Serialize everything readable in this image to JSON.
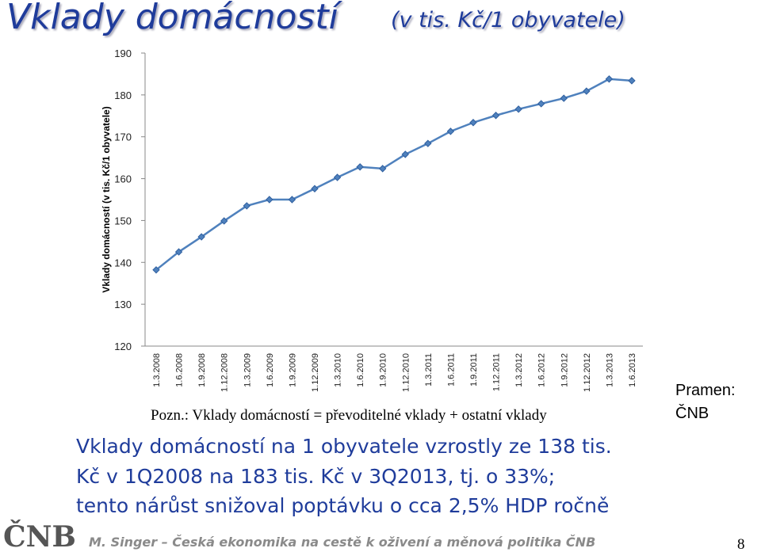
{
  "slide": {
    "title": "Vklady domácností",
    "subtitle": "(v tis. Kč/1 obyvatele)",
    "note": "Pozn.: Vklady domácností = převoditelné vklady + ostatní vklady",
    "source": [
      "Pramen:",
      "ČNB"
    ],
    "text": [
      "Vklady domácností na 1 obyvatele vzrostly ze 138 tis.",
      "Kč v 1Q2008 na 183 tis. Kč v 3Q2013, tj. o 33%;",
      "tento nárůst snižoval poptávku o cca 2,5% HDP ročně"
    ],
    "logo": "ČNB",
    "footer": "M. Singer – Česká ekonomika na cestě k oživení a měnová politika ČNB",
    "page": "8"
  },
  "chart_data": {
    "type": "line",
    "y_label": "Vklady domácností (v tis. Kč/1 obyvatele)",
    "categories": [
      "1.3.2008",
      "1.6.2008",
      "1.9.2008",
      "1.12.2008",
      "1.3.2009",
      "1.6.2009",
      "1.9.2009",
      "1.12.2009",
      "1.3.2010",
      "1.6.2010",
      "1.9.2010",
      "1.12.2010",
      "1.3.2011",
      "1.6.2011",
      "1.9.2011",
      "1.12.2011",
      "1.3.2012",
      "1.6.2012",
      "1.9.2012",
      "1.12.2012",
      "1.3.2013",
      "1.6.2013"
    ],
    "values": [
      138.2,
      142.5,
      146.1,
      149.9,
      153.5,
      155.0,
      155.0,
      157.6,
      160.3,
      162.8,
      162.4,
      165.8,
      168.4,
      171.3,
      173.4,
      175.1,
      176.6,
      177.9,
      179.2,
      180.9,
      183.8,
      183.4
    ],
    "color": "#4f81bd",
    "ylim": [
      120,
      190
    ],
    "yticks": [
      120,
      130,
      140,
      150,
      160,
      170,
      180,
      190
    ],
    "grid": false
  }
}
